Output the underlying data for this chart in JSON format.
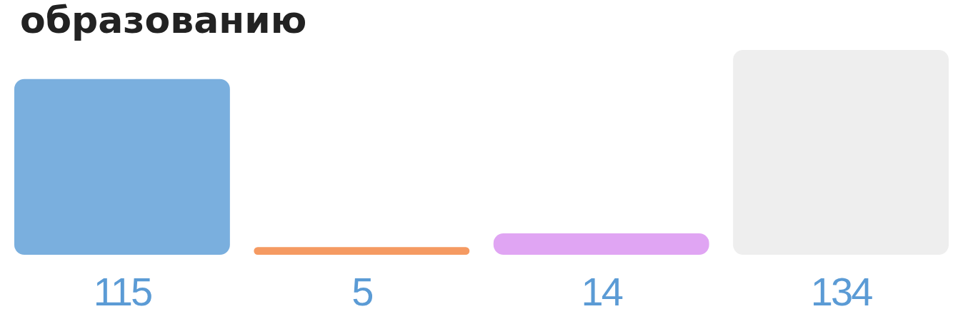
{
  "chart_data": {
    "type": "bar",
    "title": "образованию",
    "categories": [
      null,
      null,
      null,
      null
    ],
    "values": [
      115,
      5,
      14,
      134
    ],
    "colors": [
      "#7aafde",
      "#f59a62",
      "#e0a5f3",
      "#eeeeee"
    ],
    "data_labels": true
  }
}
